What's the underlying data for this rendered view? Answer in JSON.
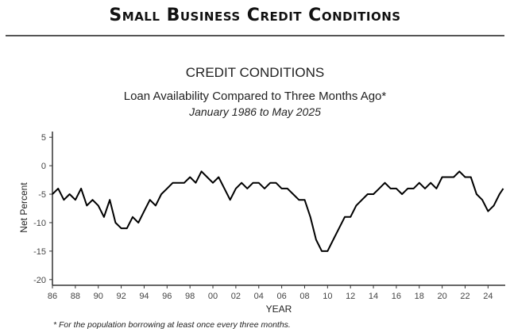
{
  "header": {
    "title": "Small Business Credit Conditions"
  },
  "footnote": "* For the population borrowing at least once every three months.",
  "chart_data": {
    "type": "line",
    "title": "CREDIT CONDITIONS",
    "subtitle": "Loan Availability Compared to Three Months Ago*",
    "date_range": "January 1986 to May 2025",
    "xlabel": "YEAR",
    "ylabel": "Net Percent",
    "ylim": [
      -21,
      6
    ],
    "xlim": [
      1986,
      2025.5
    ],
    "y_ticks": [
      5,
      0,
      -5,
      -10,
      -15,
      -20
    ],
    "x_ticks": [
      "86",
      "88",
      "90",
      "92",
      "94",
      "96",
      "98",
      "00",
      "02",
      "04",
      "06",
      "08",
      "10",
      "12",
      "14",
      "16",
      "18",
      "20",
      "22",
      "24"
    ],
    "x_tick_years": [
      1986,
      1988,
      1990,
      1992,
      1994,
      1996,
      1998,
      2000,
      2002,
      2004,
      2006,
      2008,
      2010,
      2012,
      2014,
      2016,
      2018,
      2020,
      2022,
      2024
    ],
    "grid": false,
    "legend": "none",
    "color": "#000000",
    "series": [
      {
        "x": [
          1986.0,
          1986.5,
          1987.0,
          1987.5,
          1988.0,
          1988.5,
          1989.0,
          1989.5,
          1990.0,
          1990.5,
          1991.0,
          1991.5,
          1992.0,
          1992.5,
          1993.0,
          1993.5,
          1994.0,
          1994.5,
          1995.0,
          1995.5,
          1996.0,
          1996.5,
          1997.0,
          1997.5,
          1998.0,
          1998.5,
          1999.0,
          1999.5,
          2000.0,
          2000.5,
          2001.0,
          2001.5,
          2002.0,
          2002.5,
          2003.0,
          2003.5,
          2004.0,
          2004.5,
          2005.0,
          2005.5,
          2006.0,
          2006.5,
          2007.0,
          2007.5,
          2008.0,
          2008.5,
          2009.0,
          2009.5,
          2010.0,
          2010.5,
          2011.0,
          2011.5,
          2012.0,
          2012.5,
          2013.0,
          2013.5,
          2014.0,
          2014.5,
          2015.0,
          2015.5,
          2016.0,
          2016.5,
          2017.0,
          2017.5,
          2018.0,
          2018.5,
          2019.0,
          2019.5,
          2020.0,
          2020.5,
          2021.0,
          2021.5,
          2022.0,
          2022.5,
          2023.0,
          2023.5,
          2024.0,
          2024.5,
          2025.0,
          2025.33
        ],
        "values": [
          -5,
          -4,
          -6,
          -5,
          -6,
          -4,
          -7,
          -6,
          -7,
          -9,
          -6,
          -10,
          -11,
          -11,
          -9,
          -10,
          -8,
          -6,
          -7,
          -5,
          -4,
          -3,
          -3,
          -3,
          -2,
          -3,
          -1,
          -2,
          -3,
          -2,
          -4,
          -6,
          -4,
          -3,
          -4,
          -3,
          -3,
          -4,
          -3,
          -3,
          -4,
          -4,
          -5,
          -6,
          -6,
          -9,
          -13,
          -15,
          -15,
          -13,
          -11,
          -9,
          -9,
          -7,
          -6,
          -5,
          -5,
          -4,
          -3,
          -4,
          -4,
          -5,
          -4,
          -4,
          -3,
          -4,
          -3,
          -4,
          -2,
          -2,
          -2,
          -1,
          -2,
          -2,
          -5,
          -6,
          -8,
          -7,
          -5,
          -4
        ]
      }
    ]
  }
}
